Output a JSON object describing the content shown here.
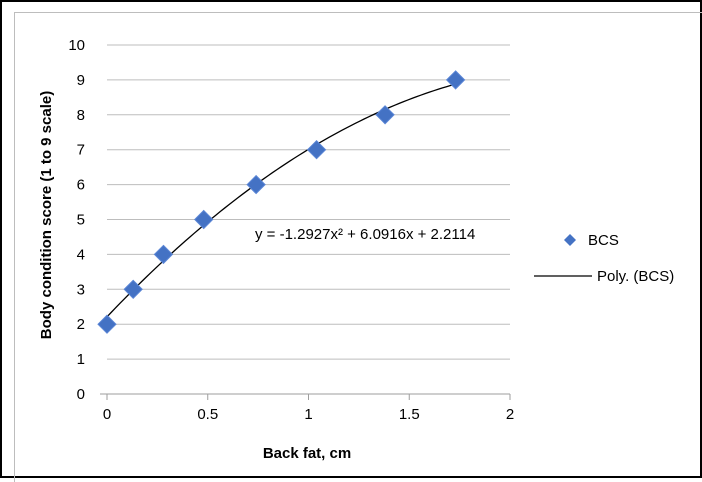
{
  "chart_data": {
    "type": "scatter",
    "title": "",
    "xlabel": "Back fat, cm",
    "ylabel": "Body condition score (1 to 9 scale)",
    "xlim": [
      0,
      2
    ],
    "ylim": [
      0,
      10
    ],
    "x_ticks": [
      "0",
      "0.5",
      "1",
      "1.5",
      "2"
    ],
    "y_ticks": [
      "0",
      "1",
      "2",
      "3",
      "4",
      "5",
      "6",
      "7",
      "8",
      "9",
      "10"
    ],
    "grid": "horizontal",
    "legend_position": "right",
    "series": [
      {
        "name": "BCS",
        "marker": "diamond",
        "color": "#4472c4",
        "points": [
          {
            "x": 0.0,
            "y": 2
          },
          {
            "x": 0.13,
            "y": 3
          },
          {
            "x": 0.28,
            "y": 4
          },
          {
            "x": 0.48,
            "y": 5
          },
          {
            "x": 0.74,
            "y": 6
          },
          {
            "x": 1.04,
            "y": 7
          },
          {
            "x": 1.38,
            "y": 8
          },
          {
            "x": 1.73,
            "y": 9
          }
        ]
      }
    ],
    "trendline": {
      "name": "Poly. (BCS)",
      "type": "polynomial",
      "color": "#000000",
      "coefficients": {
        "a": -1.2927,
        "b": 6.0916,
        "c": 2.2114
      },
      "x_range": [
        0,
        1.73
      ],
      "equation_label": "y = -1.2927x² + 6.0916x + 2.2114"
    }
  }
}
